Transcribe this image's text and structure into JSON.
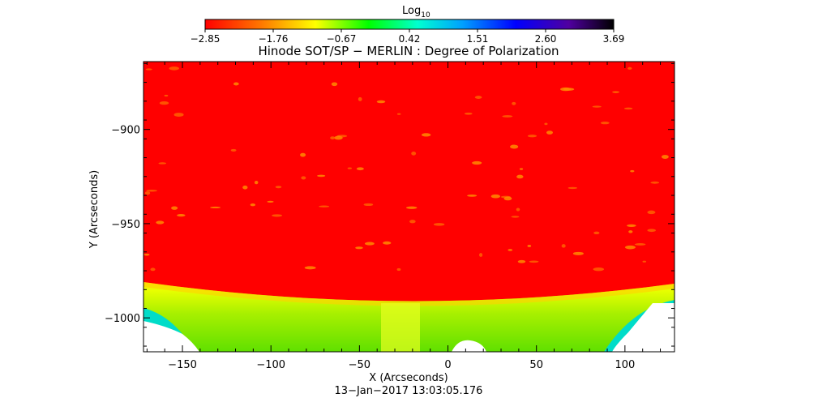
{
  "chart_data": {
    "type": "heatmap",
    "title": "Hinode SOT/SP − MERLIN : Degree of Polarization",
    "xlabel": "X (Arcseconds)",
    "ylabel": "Y (Arcseconds)",
    "timestamp": "13−Jan−2017 13:03:05.176",
    "xlim": [
      -172,
      128
    ],
    "ylim": [
      -1018,
      -864
    ],
    "x_ticks": [
      -150,
      -100,
      -50,
      0,
      50,
      100
    ],
    "x_tick_labels": [
      "−150",
      "−100",
      "−50",
      "0",
      "50",
      "100"
    ],
    "y_ticks": [
      -900,
      -950,
      -1000
    ],
    "y_tick_labels": [
      "−900",
      "−950",
      "−1000"
    ],
    "colorbar": {
      "label_base": "Log",
      "label_sub": "10",
      "range": [
        -2.85,
        3.69
      ],
      "ticks": [
        -2.85,
        -1.76,
        -0.67,
        0.42,
        1.51,
        2.6,
        3.69
      ],
      "tick_labels": [
        "−2.85",
        "−1.76",
        "−0.67",
        "0.42",
        "1.51",
        "2.60",
        "3.69"
      ],
      "colors": [
        "#ff0000",
        "#ff7a00",
        "#ffff00",
        "#00ff00",
        "#00ffd0",
        "#00a0ff",
        "#0000ff",
        "#5000a0",
        "#000000"
      ]
    },
    "colors": {
      "disk": "#ff0000",
      "limb_band": "#ffe600",
      "off_limb": "#78e000",
      "edge": "#00dcc8",
      "no_data": "#ffffff"
    }
  }
}
